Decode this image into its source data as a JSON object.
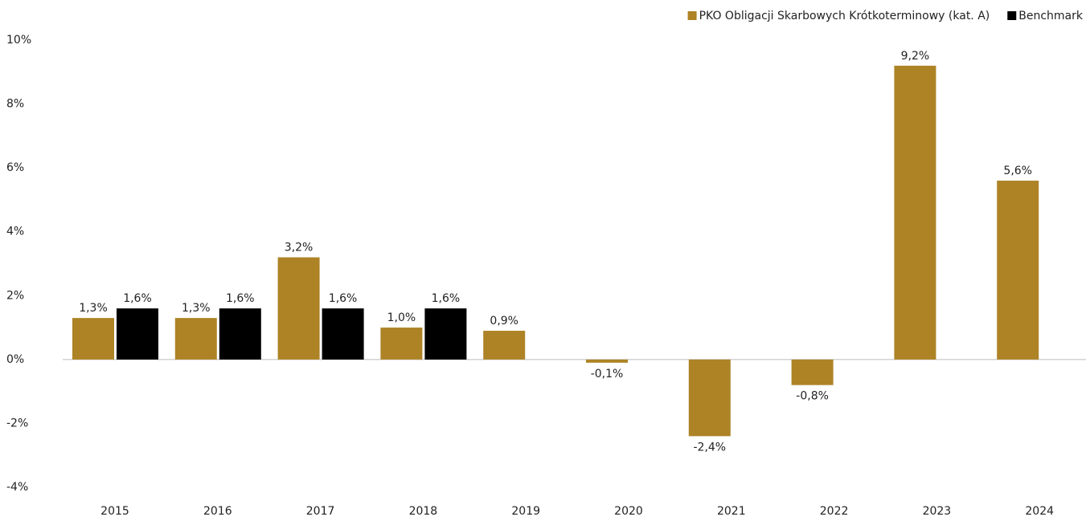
{
  "chart_data": {
    "type": "bar",
    "categories": [
      "2015",
      "2016",
      "2017",
      "2018",
      "2019",
      "2020",
      "2021",
      "2022",
      "2023",
      "2024"
    ],
    "series": [
      {
        "name": "PKO Obligacji Skarbowych Krótkoterminowy (kat. A)",
        "color": "#ad8326",
        "values": [
          1.3,
          1.3,
          3.2,
          1.0,
          0.9,
          -0.1,
          -2.4,
          -0.8,
          9.2,
          5.6
        ],
        "value_labels": [
          "1,3%",
          "1,3%",
          "3,2%",
          "1,0%",
          "0,9%",
          "-0,1%",
          "-2,4%",
          "-0,8%",
          "9,2%",
          "5,6%"
        ]
      },
      {
        "name": "Benchmark",
        "color": "#000000",
        "values": [
          1.6,
          1.6,
          1.6,
          1.6,
          null,
          null,
          null,
          null,
          null,
          null
        ],
        "value_labels": [
          "1,6%",
          "1,6%",
          "1,6%",
          "1,6%",
          null,
          null,
          null,
          null,
          null,
          null
        ]
      }
    ],
    "ylim": [
      -4,
      10
    ],
    "yticks": [
      {
        "value": -4,
        "label": "-4%"
      },
      {
        "value": -2,
        "label": "-2%"
      },
      {
        "value": 0,
        "label": "0%"
      },
      {
        "value": 2,
        "label": "2%"
      },
      {
        "value": 4,
        "label": "4%"
      },
      {
        "value": 6,
        "label": "6%"
      },
      {
        "value": 8,
        "label": "8%"
      },
      {
        "value": 10,
        "label": "10%"
      }
    ],
    "legend": "top-right"
  }
}
